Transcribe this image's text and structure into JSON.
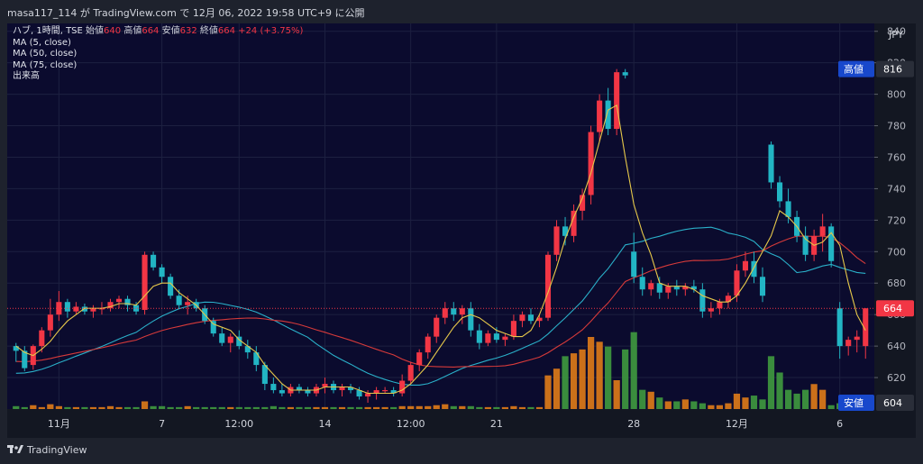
{
  "header": {
    "attribution": "masa117_114 が TradingView.com で 12月 06, 2022 19:58 UTC+9 に公開"
  },
  "legend": {
    "symbol": "ハブ, 1時間, TSE",
    "open_label": "始値",
    "open": "640",
    "high_label": "高値",
    "high": "664",
    "low_label": "安値",
    "low": "632",
    "close_label": "終値",
    "close": "664",
    "change": "+24 (+3.75%)",
    "indicators": [
      "MA (5, close)",
      "MA (50, close)",
      "MA (75, close)",
      "出来高"
    ]
  },
  "footer": {
    "brand": "TradingView"
  },
  "colors": {
    "background": "#0b0b2e",
    "up": "#f23645",
    "down": "#22b5c4",
    "ma5": "#e6c84a",
    "ma50": "#2ab0c9",
    "ma75": "#d63a3a",
    "vol_up": "#e07b18",
    "vol_down": "#3f9a3f"
  },
  "chart_data": {
    "type": "candlestick",
    "currency": "JPY",
    "ylim": [
      600,
      845
    ],
    "y_ticks": [
      840,
      820,
      800,
      780,
      760,
      740,
      720,
      700,
      680,
      660,
      640,
      620
    ],
    "x_ticks": [
      {
        "label": "11月",
        "index": 5
      },
      {
        "label": "7",
        "index": 17
      },
      {
        "label": "12:00",
        "index": 26
      },
      {
        "label": "14",
        "index": 36
      },
      {
        "label": "12:00",
        "index": 46
      },
      {
        "label": "21",
        "index": 56
      },
      {
        "label": "28",
        "index": 72
      },
      {
        "label": "12月",
        "index": 84
      },
      {
        "label": "6",
        "index": 96
      }
    ],
    "price_labels": [
      {
        "text": "高値",
        "value": "816",
        "price": 816,
        "style": "label"
      },
      {
        "text": "",
        "value": "664",
        "price": 664,
        "style": "current"
      },
      {
        "text": "安値",
        "value": "604",
        "price": 604,
        "style": "label"
      }
    ],
    "candles": [
      [
        640,
        642,
        630,
        637
      ],
      [
        637,
        640,
        624,
        626
      ],
      [
        628,
        641,
        625,
        640
      ],
      [
        640,
        652,
        636,
        650
      ],
      [
        650,
        670,
        646,
        660
      ],
      [
        660,
        675,
        656,
        668
      ],
      [
        668,
        670,
        658,
        662
      ],
      [
        662,
        668,
        660,
        665
      ],
      [
        665,
        667,
        660,
        662
      ],
      [
        662,
        666,
        658,
        664
      ],
      [
        664,
        668,
        660,
        664
      ],
      [
        664,
        670,
        662,
        668
      ],
      [
        668,
        672,
        664,
        670
      ],
      [
        670,
        672,
        662,
        666
      ],
      [
        666,
        668,
        660,
        662
      ],
      [
        663,
        700,
        660,
        698
      ],
      [
        698,
        700,
        688,
        690
      ],
      [
        690,
        692,
        680,
        684
      ],
      [
        684,
        686,
        670,
        672
      ],
      [
        672,
        676,
        664,
        666
      ],
      [
        666,
        672,
        660,
        668
      ],
      [
        668,
        670,
        662,
        664
      ],
      [
        664,
        666,
        654,
        656
      ],
      [
        656,
        658,
        646,
        648
      ],
      [
        648,
        652,
        640,
        642
      ],
      [
        642,
        648,
        636,
        646
      ],
      [
        646,
        650,
        638,
        640
      ],
      [
        640,
        644,
        632,
        636
      ],
      [
        636,
        640,
        624,
        628
      ],
      [
        628,
        630,
        612,
        616
      ],
      [
        616,
        620,
        610,
        612
      ],
      [
        612,
        616,
        608,
        610
      ],
      [
        610,
        616,
        608,
        614
      ],
      [
        614,
        616,
        610,
        612
      ],
      [
        612,
        614,
        608,
        610
      ],
      [
        610,
        616,
        608,
        614
      ],
      [
        614,
        620,
        610,
        616
      ],
      [
        616,
        618,
        610,
        612
      ],
      [
        612,
        616,
        608,
        614
      ],
      [
        614,
        616,
        610,
        612
      ],
      [
        612,
        614,
        606,
        608
      ],
      [
        608,
        612,
        604,
        610
      ],
      [
        610,
        614,
        606,
        612
      ],
      [
        612,
        614,
        610,
        612
      ],
      [
        612,
        614,
        608,
        610
      ],
      [
        610,
        622,
        608,
        618
      ],
      [
        618,
        630,
        616,
        628
      ],
      [
        628,
        638,
        624,
        636
      ],
      [
        636,
        648,
        632,
        646
      ],
      [
        646,
        660,
        642,
        658
      ],
      [
        658,
        668,
        654,
        664
      ],
      [
        664,
        668,
        656,
        660
      ],
      [
        660,
        666,
        654,
        664
      ],
      [
        664,
        668,
        646,
        650
      ],
      [
        650,
        654,
        638,
        642
      ],
      [
        642,
        650,
        640,
        648
      ],
      [
        648,
        652,
        642,
        644
      ],
      [
        644,
        648,
        640,
        646
      ],
      [
        646,
        660,
        644,
        656
      ],
      [
        656,
        662,
        652,
        660
      ],
      [
        660,
        664,
        654,
        656
      ],
      [
        656,
        660,
        652,
        658
      ],
      [
        658,
        700,
        656,
        698
      ],
      [
        698,
        720,
        694,
        716
      ],
      [
        716,
        722,
        704,
        710
      ],
      [
        710,
        730,
        706,
        726
      ],
      [
        726,
        740,
        720,
        736
      ],
      [
        736,
        780,
        730,
        776
      ],
      [
        776,
        800,
        770,
        796
      ],
      [
        796,
        804,
        774,
        778
      ],
      [
        778,
        816,
        774,
        814
      ],
      [
        814,
        816,
        810,
        812
      ],
      [
        700,
        712,
        680,
        684
      ],
      [
        684,
        690,
        672,
        676
      ],
      [
        676,
        682,
        672,
        680
      ],
      [
        680,
        684,
        670,
        674
      ],
      [
        674,
        680,
        670,
        678
      ],
      [
        678,
        682,
        672,
        676
      ],
      [
        676,
        680,
        672,
        678
      ],
      [
        678,
        682,
        674,
        676
      ],
      [
        676,
        680,
        658,
        662
      ],
      [
        662,
        668,
        658,
        664
      ],
      [
        664,
        670,
        660,
        668
      ],
      [
        668,
        674,
        664,
        672
      ],
      [
        672,
        692,
        668,
        688
      ],
      [
        688,
        700,
        684,
        694
      ],
      [
        694,
        700,
        680,
        684
      ],
      [
        684,
        690,
        668,
        672
      ],
      [
        768,
        770,
        740,
        744
      ],
      [
        744,
        748,
        728,
        732
      ],
      [
        732,
        740,
        718,
        722
      ],
      [
        722,
        726,
        706,
        710
      ],
      [
        710,
        716,
        694,
        698
      ],
      [
        698,
        714,
        694,
        710
      ],
      [
        710,
        724,
        700,
        716
      ],
      [
        716,
        718,
        690,
        694
      ],
      [
        664,
        668,
        632,
        640
      ],
      [
        640,
        646,
        634,
        644
      ],
      [
        644,
        650,
        636,
        646
      ],
      [
        640,
        664,
        632,
        664
      ]
    ],
    "volume_ylim": [
      0,
      120
    ],
    "volume": [
      3,
      2,
      4,
      2,
      5,
      3,
      2,
      2,
      2,
      2,
      2,
      3,
      2,
      2,
      2,
      8,
      3,
      3,
      2,
      2,
      3,
      2,
      2,
      2,
      2,
      2,
      2,
      2,
      2,
      2,
      3,
      2,
      2,
      2,
      2,
      2,
      2,
      2,
      2,
      2,
      2,
      2,
      2,
      2,
      2,
      3,
      3,
      3,
      3,
      4,
      5,
      3,
      3,
      3,
      2,
      2,
      2,
      2,
      3,
      2,
      2,
      2,
      35,
      42,
      55,
      58,
      62,
      75,
      70,
      65,
      30,
      62,
      80,
      20,
      18,
      12,
      8,
      8,
      10,
      8,
      6,
      4,
      4,
      6,
      16,
      12,
      14,
      10,
      55,
      38,
      20,
      16,
      20,
      26,
      20,
      4,
      6,
      4,
      4,
      2
    ],
    "ma5": [
      640,
      636,
      634,
      638,
      643,
      650,
      656,
      660,
      664,
      664,
      664,
      665,
      667,
      667,
      666,
      672,
      678,
      680,
      680,
      674,
      670,
      666,
      660,
      654,
      652,
      650,
      644,
      640,
      636,
      628,
      622,
      616,
      612,
      612,
      612,
      612,
      614,
      614,
      614,
      614,
      612,
      610,
      610,
      610,
      610,
      612,
      616,
      622,
      628,
      636,
      644,
      652,
      658,
      660,
      658,
      654,
      650,
      648,
      646,
      646,
      650,
      660,
      674,
      690,
      708,
      722,
      734,
      750,
      770,
      790,
      793,
      760,
      730,
      712,
      698,
      680,
      678,
      678,
      678,
      676,
      672,
      670,
      668,
      668,
      672,
      680,
      690,
      700,
      710,
      726,
      722,
      716,
      708,
      704,
      706,
      712,
      704,
      680,
      660,
      650
    ]
  }
}
